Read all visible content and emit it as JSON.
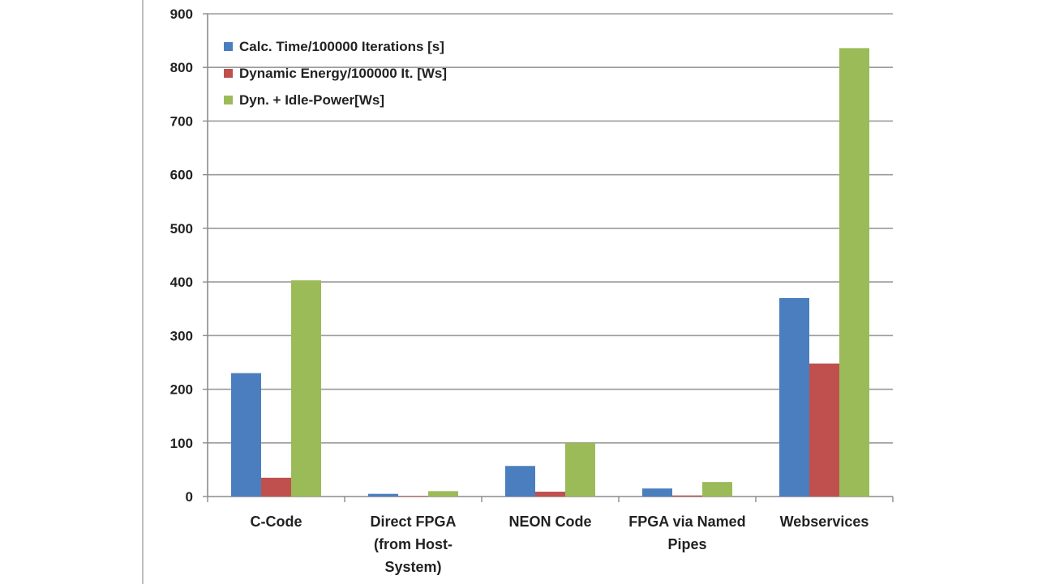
{
  "chart_data": {
    "type": "bar",
    "title": "",
    "xlabel": "",
    "ylabel": "",
    "ylim": [
      0,
      900
    ],
    "yticks": [
      0,
      100,
      200,
      300,
      400,
      500,
      600,
      700,
      800,
      900
    ],
    "grid": true,
    "legend_position": "top-left",
    "categories": [
      [
        "C-Code"
      ],
      [
        "Direct FPGA",
        "(from Host-",
        "System)"
      ],
      [
        "NEON Code"
      ],
      [
        "FPGA via Named",
        "Pipes"
      ],
      [
        "Webservices"
      ]
    ],
    "series": [
      {
        "name": "Calc. Time/100000 Iterations [s]",
        "color": "#4a7ebf",
        "values": [
          230,
          5,
          57,
          15,
          370
        ]
      },
      {
        "name": "Dynamic  Energy/100000 It. [Ws]",
        "color": "#c0504d",
        "values": [
          35,
          1,
          9,
          2,
          248
        ]
      },
      {
        "name": "Dyn. + Idle-Power[Ws]",
        "color": "#9bbb59",
        "values": [
          403,
          10,
          100,
          27,
          836
        ]
      }
    ]
  }
}
